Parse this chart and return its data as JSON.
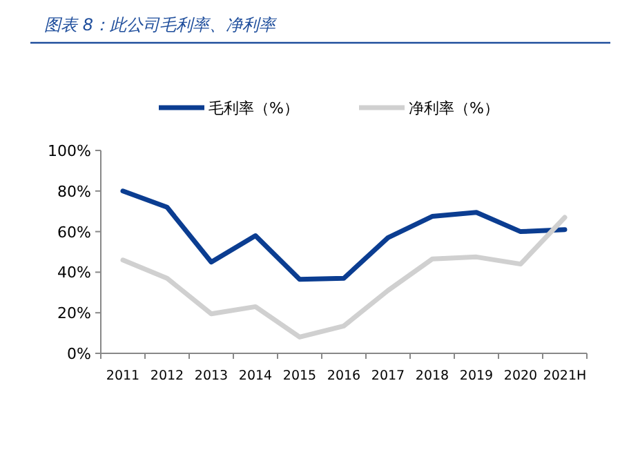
{
  "chart_data": {
    "type": "line",
    "title": "图表 8：此公司毛利率、净利率",
    "categories": [
      "2011",
      "2012",
      "2013",
      "2014",
      "2015",
      "2016",
      "2017",
      "2018",
      "2019",
      "2020",
      "2021H"
    ],
    "series": [
      {
        "name": "毛利率（%）",
        "color": "#0b3d91",
        "values": [
          80,
          72,
          45,
          58,
          36.5,
          37,
          57,
          67.5,
          69.5,
          60,
          61
        ]
      },
      {
        "name": "净利率（%）",
        "color": "#d0d0d0",
        "values": [
          46,
          37,
          19.5,
          23,
          8,
          13.5,
          31,
          46.5,
          47.5,
          44,
          67
        ]
      }
    ],
    "ylim": [
      0,
      100
    ],
    "yticks": [
      {
        "value": 0,
        "label": "0%"
      },
      {
        "value": 20,
        "label": "20%"
      },
      {
        "value": 40,
        "label": "40%"
      },
      {
        "value": 60,
        "label": "60%"
      },
      {
        "value": 80,
        "label": "80%"
      },
      {
        "value": 100,
        "label": "100%"
      }
    ],
    "legend": "top",
    "grid": false,
    "marker": "none",
    "line_style": "solid"
  }
}
